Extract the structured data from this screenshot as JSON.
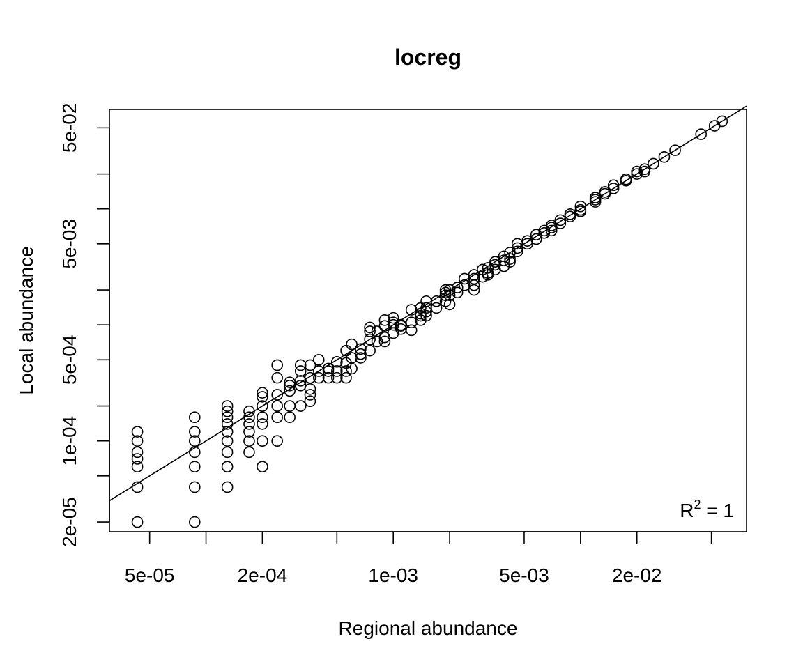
{
  "chart_data": {
    "type": "scatter",
    "title": "locreg",
    "xlabel": "Regional abundance",
    "ylabel": "Local abundance",
    "x_scale": "log",
    "y_scale": "log",
    "xlim": [
      3.05e-05,
      0.077
    ],
    "ylim": [
      1.65e-05,
      0.072
    ],
    "x_ticks": [
      5e-05,
      0.0001,
      0.0002,
      0.0005,
      0.001,
      0.002,
      0.005,
      0.01,
      0.02,
      0.05
    ],
    "x_tick_labels": [
      "5e-05",
      "",
      "2e-04",
      "",
      "1e-03",
      "",
      "5e-03",
      "",
      "2e-02",
      ""
    ],
    "y_ticks": [
      2e-05,
      5e-05,
      0.0001,
      0.0002,
      0.0005,
      0.001,
      0.002,
      0.005,
      0.01,
      0.02,
      0.05
    ],
    "y_tick_labels": [
      "2e-05",
      "",
      "1e-04",
      "",
      "5e-04",
      "",
      "",
      "5e-03",
      "",
      "",
      "5e-02"
    ],
    "annotation": {
      "text": "R",
      "superscript": "2",
      "suffix": " = 1",
      "position": "bottom-right"
    },
    "fit_line": {
      "type": "y=x",
      "from": 3.05e-05,
      "to": 0.077
    },
    "grid": false,
    "legend": "none",
    "points": [
      [
        4.3e-05,
        2e-05
      ],
      [
        4.3e-05,
        4e-05
      ],
      [
        4.3e-05,
        6e-05
      ],
      [
        4.3e-05,
        7e-05
      ],
      [
        4.3e-05,
        8e-05
      ],
      [
        4.3e-05,
        0.0001
      ],
      [
        4.3e-05,
        0.00012
      ],
      [
        8.7e-05,
        2e-05
      ],
      [
        8.7e-05,
        4e-05
      ],
      [
        8.7e-05,
        6e-05
      ],
      [
        8.7e-05,
        8e-05
      ],
      [
        8.7e-05,
        0.0001
      ],
      [
        8.7e-05,
        0.00012
      ],
      [
        8.7e-05,
        0.00016
      ],
      [
        0.00013,
        4e-05
      ],
      [
        0.00013,
        6e-05
      ],
      [
        0.00013,
        8e-05
      ],
      [
        0.00013,
        0.0001
      ],
      [
        0.00013,
        0.00012
      ],
      [
        0.00013,
        0.00014
      ],
      [
        0.00013,
        0.00016
      ],
      [
        0.00013,
        0.00018
      ],
      [
        0.00013,
        0.0002
      ],
      [
        0.00017,
        8e-05
      ],
      [
        0.00017,
        0.0001
      ],
      [
        0.00017,
        0.00012
      ],
      [
        0.00017,
        0.00014
      ],
      [
        0.00017,
        0.00016
      ],
      [
        0.00017,
        0.00018
      ],
      [
        0.0002,
        6e-05
      ],
      [
        0.0002,
        0.0001
      ],
      [
        0.0002,
        0.00014
      ],
      [
        0.0002,
        0.00016
      ],
      [
        0.0002,
        0.0002
      ],
      [
        0.0002,
        0.00024
      ],
      [
        0.0002,
        0.00026
      ],
      [
        0.00024,
        0.0001
      ],
      [
        0.00024,
        0.00016
      ],
      [
        0.00024,
        0.0002
      ],
      [
        0.00024,
        0.00025
      ],
      [
        0.00024,
        0.00035
      ],
      [
        0.00024,
        0.00045
      ],
      [
        0.00028,
        0.00016
      ],
      [
        0.00028,
        0.0002
      ],
      [
        0.00028,
        0.00027
      ],
      [
        0.00028,
        0.0003
      ],
      [
        0.00028,
        0.00032
      ],
      [
        0.00032,
        0.0002
      ],
      [
        0.00032,
        0.0003
      ],
      [
        0.00032,
        0.00033
      ],
      [
        0.00032,
        0.0004
      ],
      [
        0.00032,
        0.00045
      ],
      [
        0.00036,
        0.00022
      ],
      [
        0.00036,
        0.00025
      ],
      [
        0.00036,
        0.00028
      ],
      [
        0.00036,
        0.00035
      ],
      [
        0.00036,
        0.00045
      ],
      [
        0.0004,
        0.00035
      ],
      [
        0.0004,
        0.0004
      ],
      [
        0.0004,
        0.0005
      ],
      [
        0.00045,
        0.00035
      ],
      [
        0.00045,
        0.0004
      ],
      [
        0.00045,
        0.00042
      ],
      [
        0.0005,
        0.00035
      ],
      [
        0.0005,
        0.0004
      ],
      [
        0.0005,
        0.00048
      ],
      [
        0.00056,
        0.00035
      ],
      [
        0.00056,
        0.0004
      ],
      [
        0.00056,
        0.00047
      ],
      [
        0.00056,
        0.0006
      ],
      [
        0.0006,
        0.00042
      ],
      [
        0.0006,
        0.00052
      ],
      [
        0.0006,
        0.00068
      ],
      [
        0.00067,
        0.00052
      ],
      [
        0.00067,
        0.00056
      ],
      [
        0.00067,
        0.00062
      ],
      [
        0.00075,
        0.0006
      ],
      [
        0.00075,
        0.00075
      ],
      [
        0.00075,
        0.00088
      ],
      [
        0.00075,
        0.00095
      ],
      [
        0.00082,
        0.00072
      ],
      [
        0.00082,
        0.00088
      ],
      [
        0.0009,
        0.00072
      ],
      [
        0.0009,
        0.00078
      ],
      [
        0.0009,
        0.00098
      ],
      [
        0.0009,
        0.0011
      ],
      [
        0.001,
        0.00085
      ],
      [
        0.001,
        0.001
      ],
      [
        0.001,
        0.00105
      ],
      [
        0.001,
        0.00115
      ],
      [
        0.0011,
        0.00092
      ],
      [
        0.0011,
        0.00098
      ],
      [
        0.0011,
        0.001
      ],
      [
        0.00125,
        0.0009
      ],
      [
        0.00125,
        0.00105
      ],
      [
        0.00125,
        0.00135
      ],
      [
        0.0014,
        0.0011
      ],
      [
        0.0014,
        0.0012
      ],
      [
        0.0014,
        0.00125
      ],
      [
        0.0014,
        0.0014
      ],
      [
        0.0015,
        0.0012
      ],
      [
        0.0015,
        0.0013
      ],
      [
        0.0015,
        0.0014
      ],
      [
        0.0015,
        0.0016
      ],
      [
        0.0017,
        0.0014
      ],
      [
        0.0017,
        0.0016
      ],
      [
        0.0019,
        0.0016
      ],
      [
        0.0019,
        0.0018
      ],
      [
        0.0019,
        0.0019
      ],
      [
        0.0019,
        0.002
      ],
      [
        0.002,
        0.0015
      ],
      [
        0.002,
        0.0018
      ],
      [
        0.002,
        0.002
      ],
      [
        0.0022,
        0.0019
      ],
      [
        0.0022,
        0.0021
      ],
      [
        0.0024,
        0.0022
      ],
      [
        0.0024,
        0.0025
      ],
      [
        0.0027,
        0.002
      ],
      [
        0.0027,
        0.0022
      ],
      [
        0.0027,
        0.0025
      ],
      [
        0.0027,
        0.0027
      ],
      [
        0.003,
        0.0026
      ],
      [
        0.003,
        0.003
      ],
      [
        0.0032,
        0.0027
      ],
      [
        0.0032,
        0.0028
      ],
      [
        0.0032,
        0.0031
      ],
      [
        0.0035,
        0.003
      ],
      [
        0.0035,
        0.0033
      ],
      [
        0.0035,
        0.0035
      ],
      [
        0.0039,
        0.0032
      ],
      [
        0.0039,
        0.0036
      ],
      [
        0.0039,
        0.0039
      ],
      [
        0.0042,
        0.0035
      ],
      [
        0.0042,
        0.0037
      ],
      [
        0.0042,
        0.0042
      ],
      [
        0.0046,
        0.0043
      ],
      [
        0.0046,
        0.0046
      ],
      [
        0.0046,
        0.005
      ],
      [
        0.0052,
        0.005
      ],
      [
        0.0052,
        0.0053
      ],
      [
        0.0058,
        0.0055
      ],
      [
        0.0058,
        0.006
      ],
      [
        0.0064,
        0.0062
      ],
      [
        0.0064,
        0.0065
      ],
      [
        0.007,
        0.0065
      ],
      [
        0.007,
        0.0069
      ],
      [
        0.007,
        0.0072
      ],
      [
        0.0078,
        0.0075
      ],
      [
        0.0078,
        0.008
      ],
      [
        0.0088,
        0.0086
      ],
      [
        0.0088,
        0.009
      ],
      [
        0.01,
        0.0095
      ],
      [
        0.01,
        0.0098
      ],
      [
        0.01,
        0.0105
      ],
      [
        0.012,
        0.0115
      ],
      [
        0.012,
        0.012
      ],
      [
        0.012,
        0.0125
      ],
      [
        0.0135,
        0.0135
      ],
      [
        0.0135,
        0.014
      ],
      [
        0.015,
        0.015
      ],
      [
        0.015,
        0.016
      ],
      [
        0.0175,
        0.0175
      ],
      [
        0.0175,
        0.018
      ],
      [
        0.02,
        0.02
      ],
      [
        0.02,
        0.021
      ],
      [
        0.022,
        0.021
      ],
      [
        0.022,
        0.022
      ],
      [
        0.0245,
        0.0245
      ],
      [
        0.028,
        0.028
      ],
      [
        0.032,
        0.032
      ],
      [
        0.044,
        0.044
      ],
      [
        0.052,
        0.052
      ],
      [
        0.057,
        0.057
      ]
    ]
  }
}
